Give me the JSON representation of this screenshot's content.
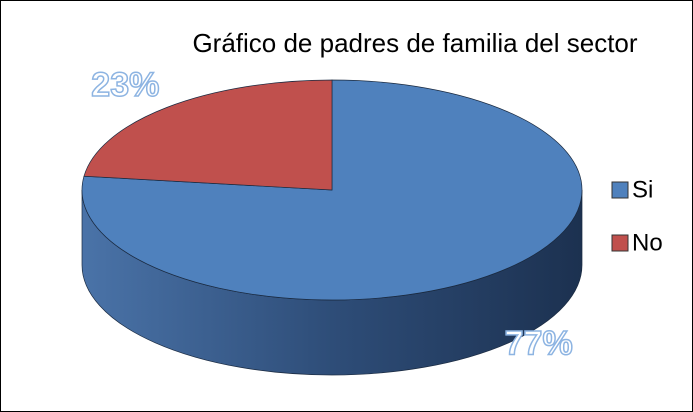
{
  "chart_data": {
    "type": "pie",
    "title": "Gráfico de padres de familia del sector",
    "categories": [
      "Si",
      "No"
    ],
    "values": [
      77,
      23
    ],
    "value_labels": [
      "77%",
      "23%"
    ],
    "colors": [
      "#4f81bd",
      "#c0504d"
    ],
    "legend": "right"
  }
}
